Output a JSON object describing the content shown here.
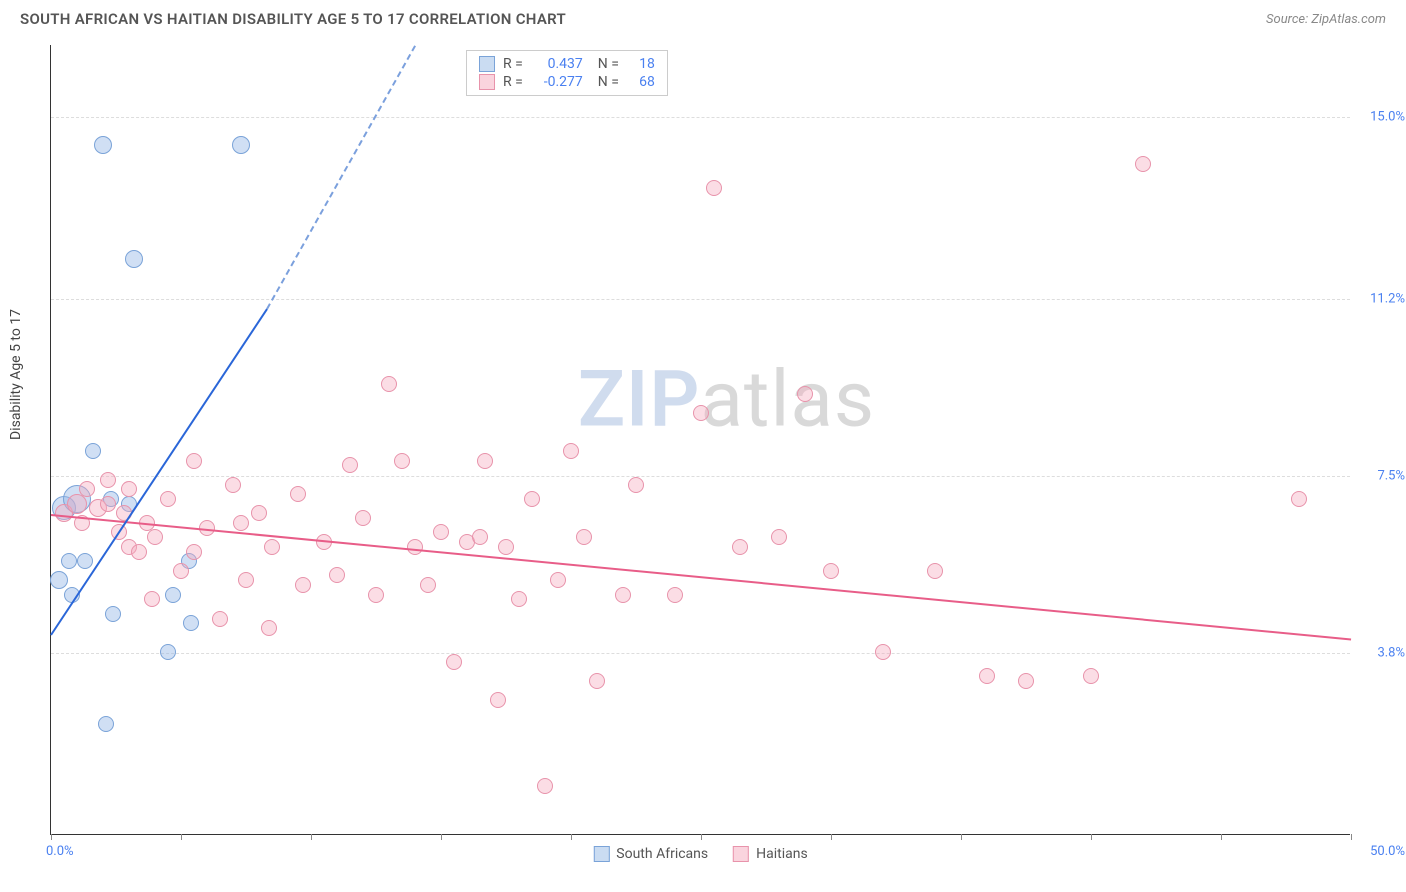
{
  "title": "SOUTH AFRICAN VS HAITIAN DISABILITY AGE 5 TO 17 CORRELATION CHART",
  "source": "Source: ZipAtlas.com",
  "ylabel": "Disability Age 5 to 17",
  "watermark_zip": "ZIP",
  "watermark_atlas": "atlas",
  "chart": {
    "type": "scatter",
    "xlim": [
      0,
      50
    ],
    "ylim": [
      0,
      16.5
    ],
    "yticks": [
      {
        "v": 3.8,
        "label": "3.8%"
      },
      {
        "v": 7.5,
        "label": "7.5%"
      },
      {
        "v": 11.2,
        "label": "11.2%"
      },
      {
        "v": 15.0,
        "label": "15.0%"
      }
    ],
    "xtick_positions": [
      0,
      5,
      10,
      15,
      20,
      25,
      30,
      35,
      40,
      45,
      50
    ],
    "xlabel_min": "0.0%",
    "xlabel_max": "50.0%",
    "grid_color": "#dddddd",
    "background_color": "#ffffff",
    "series": [
      {
        "name": "South Africans",
        "color_fill": "rgba(150,185,230,0.45)",
        "color_stroke": "#7aa3d8",
        "trend_color": "#2a66d8",
        "marker_radius": 8,
        "R": "0.437",
        "N": "18",
        "trend": {
          "x1": 0,
          "y1": 4.2,
          "x2_solid": 8.3,
          "y2_solid": 11.0,
          "x2_dash": 14,
          "y2_dash": 16.5
        },
        "points": [
          {
            "x": 0.3,
            "y": 5.3,
            "r": 9
          },
          {
            "x": 0.7,
            "y": 5.7,
            "r": 8
          },
          {
            "x": 0.5,
            "y": 6.8,
            "r": 12
          },
          {
            "x": 1.0,
            "y": 7.0,
            "r": 14
          },
          {
            "x": 0.8,
            "y": 5.0,
            "r": 8
          },
          {
            "x": 1.3,
            "y": 5.7,
            "r": 8
          },
          {
            "x": 1.6,
            "y": 8.0,
            "r": 8
          },
          {
            "x": 2.0,
            "y": 14.4,
            "r": 9
          },
          {
            "x": 2.3,
            "y": 7.0,
            "r": 8
          },
          {
            "x": 2.4,
            "y": 4.6,
            "r": 8
          },
          {
            "x": 2.1,
            "y": 2.3,
            "r": 8
          },
          {
            "x": 3.0,
            "y": 6.9,
            "r": 8
          },
          {
            "x": 3.2,
            "y": 12.0,
            "r": 9
          },
          {
            "x": 4.5,
            "y": 3.8,
            "r": 8
          },
          {
            "x": 4.7,
            "y": 5.0,
            "r": 8
          },
          {
            "x": 5.3,
            "y": 5.7,
            "r": 8
          },
          {
            "x": 5.4,
            "y": 4.4,
            "r": 8
          },
          {
            "x": 7.3,
            "y": 14.4,
            "r": 9
          }
        ]
      },
      {
        "name": "Haitians",
        "color_fill": "rgba(245,170,190,0.4)",
        "color_stroke": "#e893ab",
        "trend_color": "#e85d88",
        "marker_radius": 8,
        "R": "-0.277",
        "N": "68",
        "trend": {
          "x1": 0,
          "y1": 6.7,
          "x2_solid": 50,
          "y2_solid": 4.1
        },
        "points": [
          {
            "x": 0.5,
            "y": 6.7,
            "r": 9
          },
          {
            "x": 1.0,
            "y": 6.9,
            "r": 10
          },
          {
            "x": 1.2,
            "y": 6.5,
            "r": 8
          },
          {
            "x": 1.4,
            "y": 7.2,
            "r": 8
          },
          {
            "x": 1.8,
            "y": 6.8,
            "r": 9
          },
          {
            "x": 2.2,
            "y": 6.9,
            "r": 8
          },
          {
            "x": 2.2,
            "y": 7.4,
            "r": 8
          },
          {
            "x": 2.6,
            "y": 6.3,
            "r": 8
          },
          {
            "x": 2.8,
            "y": 6.7,
            "r": 8
          },
          {
            "x": 3.0,
            "y": 7.2,
            "r": 8
          },
          {
            "x": 3.0,
            "y": 6.0,
            "r": 8
          },
          {
            "x": 3.4,
            "y": 5.9,
            "r": 8
          },
          {
            "x": 3.7,
            "y": 6.5,
            "r": 8
          },
          {
            "x": 3.9,
            "y": 4.9,
            "r": 8
          },
          {
            "x": 4.0,
            "y": 6.2,
            "r": 8
          },
          {
            "x": 4.5,
            "y": 7.0,
            "r": 8
          },
          {
            "x": 5.0,
            "y": 5.5,
            "r": 8
          },
          {
            "x": 5.5,
            "y": 5.9,
            "r": 8
          },
          {
            "x": 5.5,
            "y": 7.8,
            "r": 8
          },
          {
            "x": 6.0,
            "y": 6.4,
            "r": 8
          },
          {
            "x": 6.5,
            "y": 4.5,
            "r": 8
          },
          {
            "x": 7.0,
            "y": 7.3,
            "r": 8
          },
          {
            "x": 7.3,
            "y": 6.5,
            "r": 8
          },
          {
            "x": 7.5,
            "y": 5.3,
            "r": 8
          },
          {
            "x": 8.0,
            "y": 6.7,
            "r": 8
          },
          {
            "x": 8.5,
            "y": 6.0,
            "r": 8
          },
          {
            "x": 8.4,
            "y": 4.3,
            "r": 8
          },
          {
            "x": 9.5,
            "y": 7.1,
            "r": 8
          },
          {
            "x": 9.7,
            "y": 5.2,
            "r": 8
          },
          {
            "x": 10.5,
            "y": 6.1,
            "r": 8
          },
          {
            "x": 11.0,
            "y": 5.4,
            "r": 8
          },
          {
            "x": 11.5,
            "y": 7.7,
            "r": 8
          },
          {
            "x": 12.0,
            "y": 6.6,
            "r": 8
          },
          {
            "x": 12.5,
            "y": 5.0,
            "r": 8
          },
          {
            "x": 13.0,
            "y": 9.4,
            "r": 8
          },
          {
            "x": 13.5,
            "y": 7.8,
            "r": 8
          },
          {
            "x": 14.0,
            "y": 6.0,
            "r": 8
          },
          {
            "x": 14.5,
            "y": 5.2,
            "r": 8
          },
          {
            "x": 15.0,
            "y": 6.3,
            "r": 8
          },
          {
            "x": 15.5,
            "y": 3.6,
            "r": 8
          },
          {
            "x": 16.0,
            "y": 6.1,
            "r": 8
          },
          {
            "x": 16.5,
            "y": 6.2,
            "r": 8
          },
          {
            "x": 16.7,
            "y": 7.8,
            "r": 8
          },
          {
            "x": 17.5,
            "y": 6.0,
            "r": 8
          },
          {
            "x": 17.2,
            "y": 2.8,
            "r": 8
          },
          {
            "x": 18.0,
            "y": 4.9,
            "r": 8
          },
          {
            "x": 18.5,
            "y": 7.0,
            "r": 8
          },
          {
            "x": 19.0,
            "y": 1.0,
            "r": 8
          },
          {
            "x": 19.5,
            "y": 5.3,
            "r": 8
          },
          {
            "x": 20.0,
            "y": 8.0,
            "r": 8
          },
          {
            "x": 20.5,
            "y": 6.2,
            "r": 8
          },
          {
            "x": 21.0,
            "y": 3.2,
            "r": 8
          },
          {
            "x": 22.0,
            "y": 5.0,
            "r": 8
          },
          {
            "x": 22.5,
            "y": 7.3,
            "r": 8
          },
          {
            "x": 24.0,
            "y": 5.0,
            "r": 8
          },
          {
            "x": 25.0,
            "y": 8.8,
            "r": 8
          },
          {
            "x": 25.5,
            "y": 13.5,
            "r": 8
          },
          {
            "x": 26.5,
            "y": 6.0,
            "r": 8
          },
          {
            "x": 28.0,
            "y": 6.2,
            "r": 8
          },
          {
            "x": 29.0,
            "y": 9.2,
            "r": 8
          },
          {
            "x": 30.0,
            "y": 5.5,
            "r": 8
          },
          {
            "x": 32.0,
            "y": 3.8,
            "r": 8
          },
          {
            "x": 34.0,
            "y": 5.5,
            "r": 8
          },
          {
            "x": 36.0,
            "y": 3.3,
            "r": 8
          },
          {
            "x": 37.5,
            "y": 3.2,
            "r": 8
          },
          {
            "x": 40.0,
            "y": 3.3,
            "r": 8
          },
          {
            "x": 42.0,
            "y": 14.0,
            "r": 8
          },
          {
            "x": 48.0,
            "y": 7.0,
            "r": 8
          }
        ]
      }
    ]
  },
  "bottom_legend": [
    {
      "label": "South Africans",
      "swatch": "blue"
    },
    {
      "label": "Haitians",
      "swatch": "pink"
    }
  ]
}
